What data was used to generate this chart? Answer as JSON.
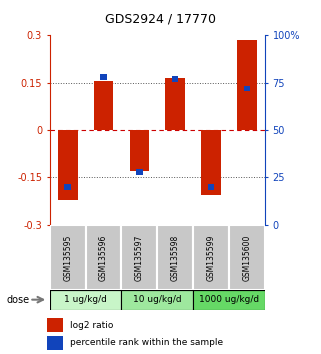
{
  "title": "GDS2924 / 17770",
  "samples": [
    "GSM135595",
    "GSM135596",
    "GSM135597",
    "GSM135598",
    "GSM135599",
    "GSM135600"
  ],
  "log2_ratios": [
    -0.22,
    0.155,
    -0.13,
    0.165,
    -0.205,
    0.285
  ],
  "percentile_ranks": [
    20,
    78,
    28,
    77,
    20,
    72
  ],
  "dose_groups": [
    {
      "label": "1 ug/kg/d",
      "samples": [
        0,
        1
      ],
      "color": "#c8f5c8"
    },
    {
      "label": "10 ug/kg/d",
      "samples": [
        2,
        3
      ],
      "color": "#9ee89e"
    },
    {
      "label": "1000 ug/kg/d",
      "samples": [
        4,
        5
      ],
      "color": "#66d966"
    }
  ],
  "ylim_left": [
    -0.3,
    0.3
  ],
  "ylim_right": [
    0,
    100
  ],
  "yticks_left": [
    -0.3,
    -0.15,
    0,
    0.15,
    0.3
  ],
  "yticks_right": [
    0,
    25,
    50,
    75,
    100
  ],
  "ytick_labels_left": [
    "-0.3",
    "-0.15",
    "0",
    "0.15",
    "0.3"
  ],
  "ytick_labels_right": [
    "0",
    "25",
    "50",
    "75",
    "100%"
  ],
  "red_color": "#cc2200",
  "blue_color": "#1144bb",
  "dotted_line_color": "#555555",
  "zero_line_color": "#cc0000",
  "bg_color": "#ffffff",
  "legend_red_label": "log2 ratio",
  "legend_blue_label": "percentile rank within the sample",
  "sample_box_color": "#c8c8c8"
}
